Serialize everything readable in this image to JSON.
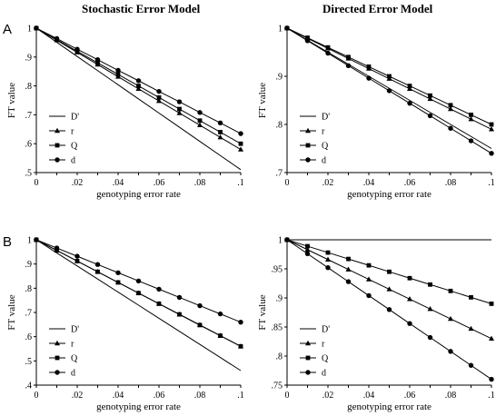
{
  "column_titles": [
    "Stochastic Error Model",
    "Directed Error Model"
  ],
  "row_labels": [
    "A",
    "B"
  ],
  "chart_data": [
    {
      "type": "line",
      "panel": "A-stochastic",
      "xlabel": "genotyping error rate",
      "ylabel": "FT value",
      "xlim": [
        0,
        0.1
      ],
      "ylim": [
        0.5,
        1
      ],
      "x": [
        0,
        0.01,
        0.02,
        0.03,
        0.04,
        0.05,
        0.06,
        0.07,
        0.08,
        0.09,
        0.1
      ],
      "xticks": [
        "0",
        ".02",
        ".04",
        ".06",
        ".08",
        ".1"
      ],
      "yticks": [
        ".5",
        ".6",
        ".7",
        ".8",
        ".9",
        "1"
      ],
      "legend_position": "bottom-left",
      "series": [
        {
          "name": "D'",
          "marker": "none",
          "values": [
            1,
            0.951,
            0.902,
            0.853,
            0.804,
            0.755,
            0.706,
            0.657,
            0.608,
            0.559,
            0.51
          ]
        },
        {
          "name": "r",
          "marker": "triangle",
          "values": [
            1,
            0.958,
            0.916,
            0.874,
            0.832,
            0.79,
            0.748,
            0.706,
            0.664,
            0.622,
            0.58
          ]
        },
        {
          "name": "Q",
          "marker": "square",
          "values": [
            1,
            0.96,
            0.92,
            0.88,
            0.84,
            0.8,
            0.76,
            0.72,
            0.68,
            0.64,
            0.6
          ]
        },
        {
          "name": "d",
          "marker": "circle",
          "values": [
            1,
            0.964,
            0.927,
            0.891,
            0.854,
            0.818,
            0.781,
            0.745,
            0.708,
            0.672,
            0.635
          ]
        }
      ]
    },
    {
      "type": "line",
      "panel": "A-directed",
      "xlabel": "genotyping error rate",
      "ylabel": "FT value",
      "xlim": [
        0,
        0.1
      ],
      "ylim": [
        0.7,
        1
      ],
      "x": [
        0,
        0.01,
        0.02,
        0.03,
        0.04,
        0.05,
        0.06,
        0.07,
        0.08,
        0.09,
        0.1
      ],
      "xticks": [
        "0",
        ".02",
        ".04",
        ".06",
        ".08",
        ".1"
      ],
      "yticks": [
        ".7",
        ".8",
        ".9",
        "1"
      ],
      "legend_position": "bottom-left",
      "series": [
        {
          "name": "D'",
          "marker": "none",
          "values": [
            1,
            0.975,
            0.95,
            0.925,
            0.9,
            0.875,
            0.85,
            0.825,
            0.8,
            0.775,
            0.75
          ]
        },
        {
          "name": "r",
          "marker": "triangle",
          "values": [
            1,
            0.979,
            0.958,
            0.937,
            0.916,
            0.895,
            0.874,
            0.853,
            0.832,
            0.811,
            0.79
          ]
        },
        {
          "name": "Q",
          "marker": "square",
          "values": [
            1,
            0.98,
            0.96,
            0.94,
            0.92,
            0.9,
            0.88,
            0.86,
            0.84,
            0.82,
            0.8
          ]
        },
        {
          "name": "d",
          "marker": "circle",
          "values": [
            1,
            0.974,
            0.948,
            0.922,
            0.896,
            0.87,
            0.844,
            0.818,
            0.792,
            0.766,
            0.74
          ]
        }
      ]
    },
    {
      "type": "line",
      "panel": "B-stochastic",
      "xlabel": "genotyping error rate",
      "ylabel": "FT value",
      "xlim": [
        0,
        0.1
      ],
      "ylim": [
        0.4,
        1
      ],
      "x": [
        0,
        0.01,
        0.02,
        0.03,
        0.04,
        0.05,
        0.06,
        0.07,
        0.08,
        0.09,
        0.1
      ],
      "xticks": [
        "0",
        ".02",
        ".04",
        ".06",
        ".08",
        ".1"
      ],
      "yticks": [
        ".4",
        ".5",
        ".6",
        ".7",
        ".8",
        ".9",
        "1"
      ],
      "legend_position": "bottom-left",
      "series": [
        {
          "name": "D'",
          "marker": "none",
          "values": [
            1,
            0.946,
            0.892,
            0.838,
            0.784,
            0.73,
            0.676,
            0.622,
            0.568,
            0.514,
            0.46
          ]
        },
        {
          "name": "r",
          "marker": "triangle",
          "values": [
            1,
            0.956,
            0.912,
            0.868,
            0.824,
            0.78,
            0.736,
            0.692,
            0.648,
            0.604,
            0.56
          ]
        },
        {
          "name": "Q",
          "marker": "square",
          "values": [
            1,
            0.956,
            0.912,
            0.868,
            0.824,
            0.78,
            0.736,
            0.692,
            0.648,
            0.604,
            0.56
          ]
        },
        {
          "name": "d",
          "marker": "circle",
          "values": [
            1,
            0.966,
            0.932,
            0.898,
            0.864,
            0.83,
            0.796,
            0.762,
            0.728,
            0.694,
            0.66
          ]
        }
      ]
    },
    {
      "type": "line",
      "panel": "B-directed",
      "xlabel": "genotyping error rate",
      "ylabel": "FT value",
      "xlim": [
        0,
        0.1
      ],
      "ylim": [
        0.75,
        1
      ],
      "x": [
        0,
        0.01,
        0.02,
        0.03,
        0.04,
        0.05,
        0.06,
        0.07,
        0.08,
        0.09,
        0.1
      ],
      "xticks": [
        "0",
        ".02",
        ".04",
        ".06",
        ".08",
        ".1"
      ],
      "yticks": [
        ".75",
        ".8",
        ".85",
        ".9",
        ".95",
        "1"
      ],
      "legend_position": "bottom-left",
      "series": [
        {
          "name": "D'",
          "marker": "none",
          "values": [
            1,
            1,
            1,
            1,
            1,
            1,
            1,
            1,
            1,
            1,
            1
          ]
        },
        {
          "name": "r",
          "marker": "triangle",
          "values": [
            1,
            0.983,
            0.966,
            0.949,
            0.932,
            0.915,
            0.898,
            0.881,
            0.864,
            0.847,
            0.83
          ]
        },
        {
          "name": "Q",
          "marker": "square",
          "values": [
            1,
            0.989,
            0.978,
            0.967,
            0.956,
            0.945,
            0.934,
            0.923,
            0.912,
            0.901,
            0.89
          ]
        },
        {
          "name": "d",
          "marker": "circle",
          "values": [
            1,
            0.976,
            0.952,
            0.928,
            0.904,
            0.88,
            0.856,
            0.832,
            0.808,
            0.784,
            0.76
          ]
        }
      ]
    }
  ]
}
